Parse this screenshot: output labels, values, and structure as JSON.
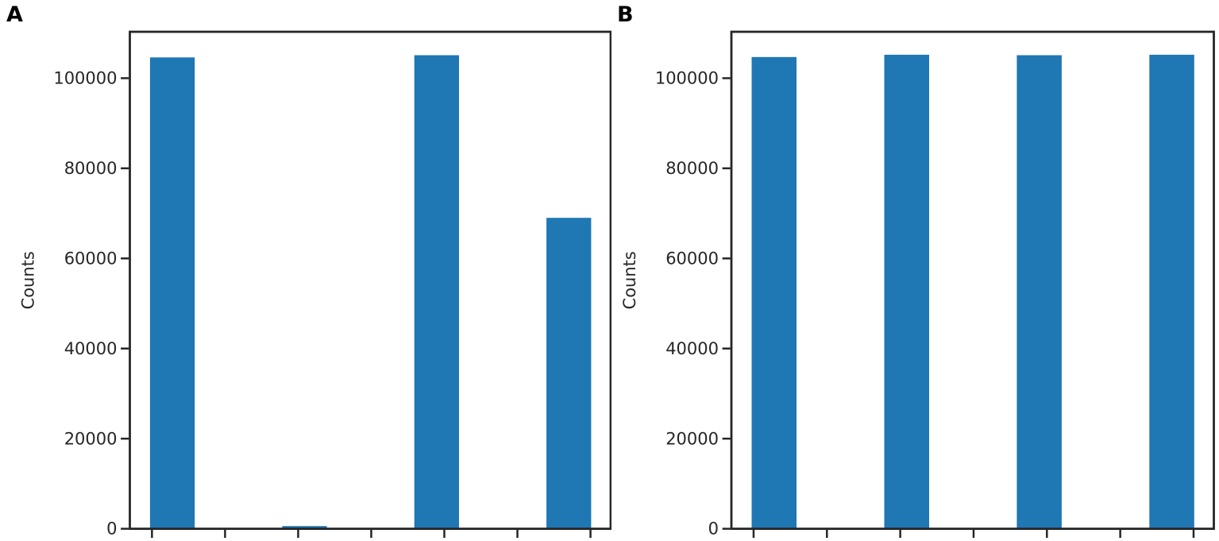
{
  "figure": {
    "background": "#ffffff",
    "panels": [
      {
        "label": "A"
      },
      {
        "label": "B"
      }
    ]
  },
  "chart_data": [
    {
      "type": "bar",
      "panel": "A",
      "title": "",
      "xlabel": "",
      "ylabel": "Counts",
      "categories": [
        "",
        "",
        "",
        ""
      ],
      "values": [
        104600,
        600,
        105100,
        69000
      ],
      "yticks": [
        0,
        20000,
        40000,
        60000,
        80000,
        100000
      ],
      "ylim": [
        0,
        110300
      ],
      "x_tick_count": 7,
      "x_tick_labels_visible": false,
      "grid": false,
      "legend": false,
      "bar_color": "#1f77b4",
      "axis_color": "#262626"
    },
    {
      "type": "bar",
      "panel": "B",
      "title": "",
      "xlabel": "",
      "ylabel": "Counts",
      "categories": [
        "",
        "",
        "",
        ""
      ],
      "values": [
        104700,
        105200,
        105100,
        105200
      ],
      "yticks": [
        0,
        20000,
        40000,
        60000,
        80000,
        100000
      ],
      "ylim": [
        0,
        110300
      ],
      "x_tick_count": 7,
      "x_tick_labels_visible": false,
      "grid": false,
      "legend": false,
      "bar_color": "#1f77b4",
      "axis_color": "#262626"
    }
  ]
}
